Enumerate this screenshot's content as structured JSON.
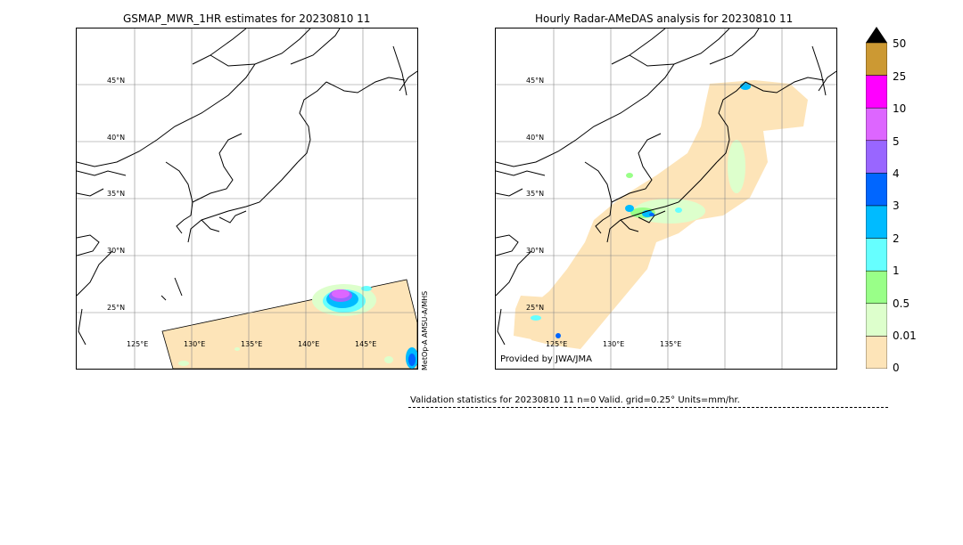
{
  "left_panel": {
    "title": "GSMAP_MWR_1HR estimates for 20230810 11",
    "lat_labels": [
      "45°N",
      "40°N",
      "35°N",
      "30°N",
      "25°N"
    ],
    "lon_labels": [
      "125°E",
      "130°E",
      "135°E",
      "140°E",
      "145°E"
    ],
    "satellite_label": "MetOp-A AMSU-A/MHS"
  },
  "right_panel": {
    "title": "Hourly Radar-AMeDAS analysis for 20230810 11",
    "lat_labels": [
      "45°N",
      "40°N",
      "35°N",
      "30°N",
      "25°N"
    ],
    "lon_labels": [
      "125°E",
      "130°E",
      "135°E"
    ],
    "credit": "Provided by JWA/JMA"
  },
  "colorbar": {
    "labels": [
      "50",
      "25",
      "10",
      "5",
      "4",
      "3",
      "2",
      "1",
      "0.5",
      "0.01",
      "0"
    ],
    "colors": [
      "#cc9933",
      "#ff00ff",
      "#dd66ff",
      "#9966ff",
      "#0066ff",
      "#00bbff",
      "#66ffff",
      "#99ff88",
      "#ddffcc",
      "#fde4b8"
    ],
    "extend_color": "#000000"
  },
  "validation": {
    "text": "Validation statistics for 20230810 11  n=0 Valid. grid=0.25° Units=mm/hr."
  }
}
